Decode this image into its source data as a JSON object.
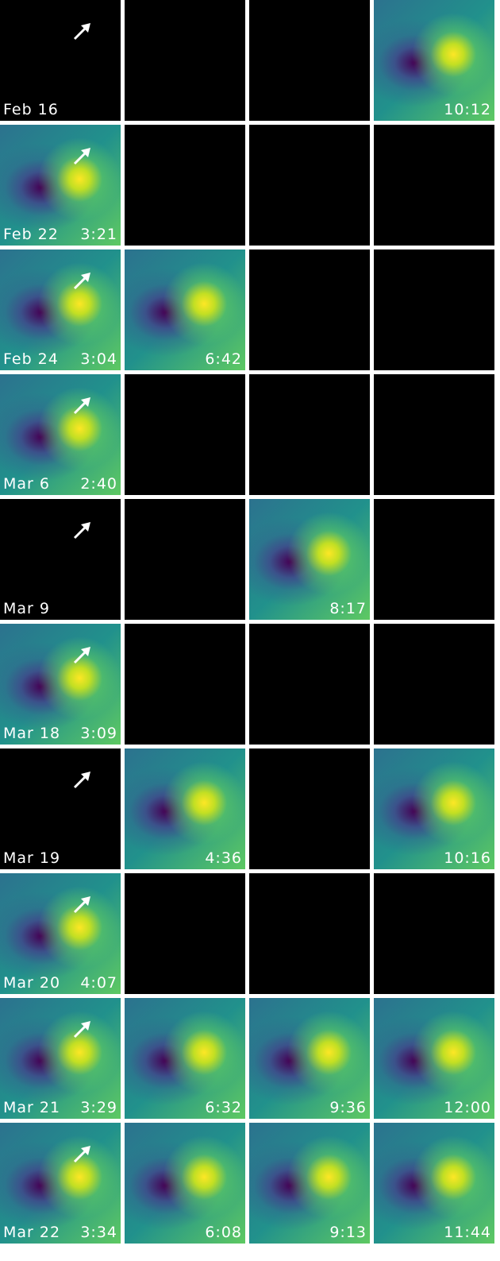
{
  "rows": [
    {
      "date": "Feb 16",
      "times": [
        null,
        null,
        null,
        "10:12"
      ]
    },
    {
      "date": "Feb 22",
      "times": [
        "3:21",
        null,
        null,
        null
      ]
    },
    {
      "date": "Feb 24",
      "times": [
        "3:04",
        "6:42",
        null,
        null
      ]
    },
    {
      "date": "Mar 6",
      "times": [
        "2:40",
        null,
        null,
        null
      ]
    },
    {
      "date": "Mar 9",
      "times": [
        null,
        null,
        "8:17",
        null
      ]
    },
    {
      "date": "Mar 18",
      "times": [
        "3:09",
        null,
        null,
        null
      ]
    },
    {
      "date": "Mar 19",
      "times": [
        null,
        "4:36",
        null,
        "10:16"
      ]
    },
    {
      "date": "Mar 20",
      "times": [
        "4:07",
        null,
        null,
        null
      ]
    },
    {
      "date": "Mar 21",
      "times": [
        "3:29",
        "6:32",
        "9:36",
        "12:00"
      ]
    },
    {
      "date": "Mar 22",
      "times": [
        "3:34",
        "6:08",
        "9:13",
        "11:44"
      ]
    }
  ]
}
